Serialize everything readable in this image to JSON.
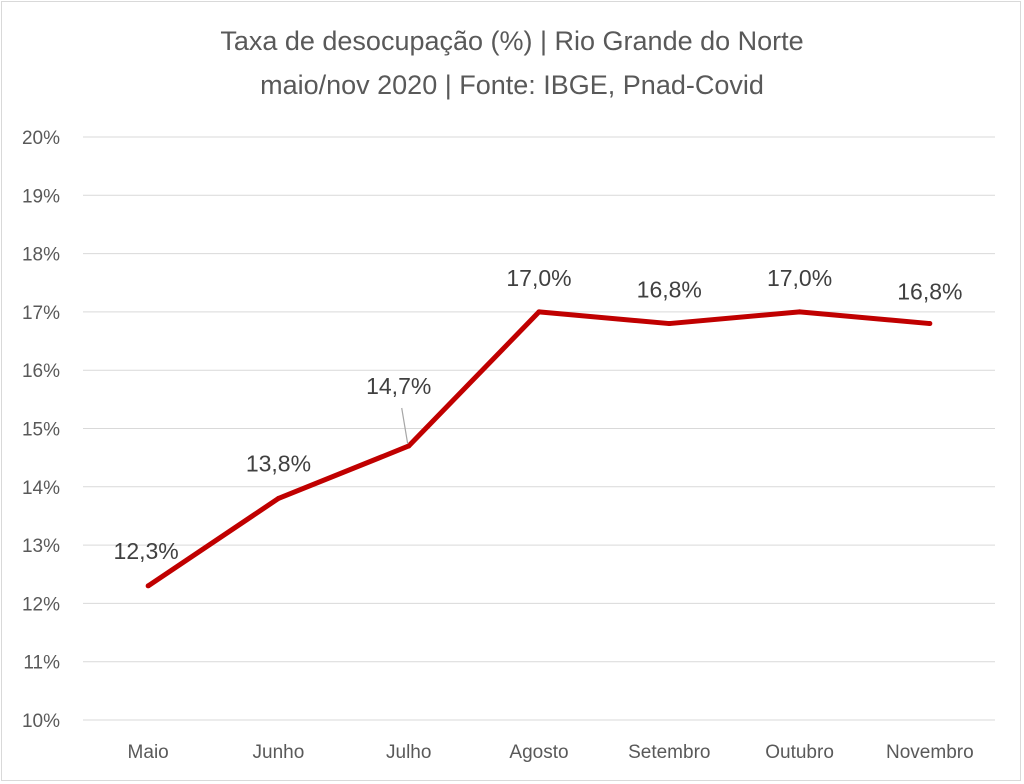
{
  "chart_data": {
    "type": "line",
    "title": "Taxa de desocupação (%) | Rio Grande do Norte",
    "subtitle": "maio/nov 2020 | Fonte: IBGE, Pnad-Covid",
    "xlabel": "",
    "ylabel": "",
    "categories": [
      "Maio",
      "Junho",
      "Julho",
      "Agosto",
      "Setembro",
      "Outubro",
      "Novembro"
    ],
    "series": [
      {
        "name": "Taxa de desocupação",
        "values": [
          12.3,
          13.8,
          14.7,
          17.0,
          16.8,
          17.0,
          16.8
        ],
        "color": "#c00000"
      }
    ],
    "data_labels": [
      "12,3%",
      "13,8%",
      "14,7%",
      "17,0%",
      "16,8%",
      "17,0%",
      "16,8%"
    ],
    "ylim": [
      10,
      20
    ],
    "yticks": [
      "10%",
      "11%",
      "12%",
      "13%",
      "14%",
      "15%",
      "16%",
      "17%",
      "18%",
      "19%",
      "20%"
    ],
    "grid": true,
    "legend": "none"
  }
}
